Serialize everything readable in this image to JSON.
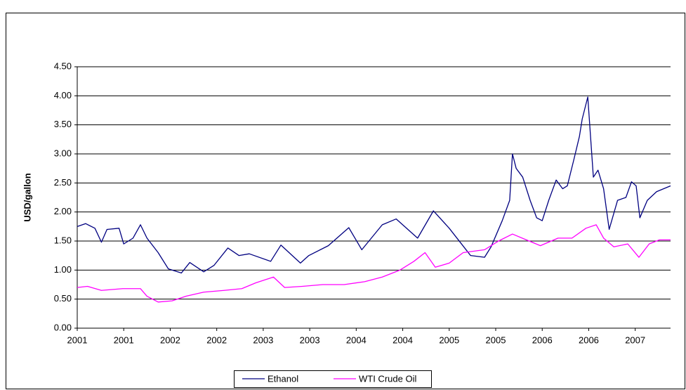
{
  "chart_data": {
    "type": "line",
    "y_label": "USD/gallon",
    "xlim": [
      2001,
      2007.38
    ],
    "xticks": [
      {
        "value": 2001,
        "label": "2001"
      },
      {
        "value": 2001.5,
        "label": "2001"
      },
      {
        "value": 2002,
        "label": "2002"
      },
      {
        "value": 2002.5,
        "label": "2002"
      },
      {
        "value": 2003,
        "label": "2003"
      },
      {
        "value": 2003.5,
        "label": "2003"
      },
      {
        "value": 2004,
        "label": "2004"
      },
      {
        "value": 2004.5,
        "label": "2004"
      },
      {
        "value": 2005,
        "label": "2005"
      },
      {
        "value": 2005.5,
        "label": "2005"
      },
      {
        "value": 2006,
        "label": "2006"
      },
      {
        "value": 2006.5,
        "label": "2006"
      },
      {
        "value": 2007,
        "label": "2007"
      }
    ],
    "ylim": [
      0,
      4.5
    ],
    "yticks": [
      {
        "value": 0,
        "label": "0.00"
      },
      {
        "value": 0.5,
        "label": "0.50"
      },
      {
        "value": 1,
        "label": "1.00"
      },
      {
        "value": 1.5,
        "label": "1.50"
      },
      {
        "value": 2,
        "label": "2.00"
      },
      {
        "value": 2.5,
        "label": "2.50"
      },
      {
        "value": 3,
        "label": "3.00"
      },
      {
        "value": 3.5,
        "label": "3.50"
      },
      {
        "value": 4,
        "label": "4.00"
      },
      {
        "value": 4.5,
        "label": "4.50"
      }
    ],
    "grid": true,
    "legend": "bottom",
    "series": [
      {
        "name": "Ethanol",
        "color": "#000080",
        "x": [
          2001.0,
          2001.09,
          2001.19,
          2001.26,
          2001.32,
          2001.45,
          2001.5,
          2001.6,
          2001.68,
          2001.75,
          2001.87,
          2001.98,
          2002.12,
          2002.21,
          2002.36,
          2002.47,
          2002.62,
          2002.74,
          2002.85,
          2003.08,
          2003.19,
          2003.4,
          2003.49,
          2003.7,
          2003.92,
          2004.06,
          2004.28,
          2004.43,
          2004.66,
          2004.83,
          2005.0,
          2005.23,
          2005.38,
          2005.45,
          2005.57,
          2005.65,
          2005.68,
          2005.72,
          2005.79,
          2005.87,
          2005.94,
          2006.0,
          2006.07,
          2006.15,
          2006.22,
          2006.27,
          2006.34,
          2006.4,
          2006.43,
          2006.49,
          2006.55,
          2006.6,
          2006.66,
          2006.72,
          2006.81,
          2006.9,
          2006.96,
          2007.01,
          2007.05,
          2007.13,
          2007.23,
          2007.38
        ],
        "values": [
          1.75,
          1.8,
          1.72,
          1.48,
          1.7,
          1.72,
          1.45,
          1.55,
          1.78,
          1.55,
          1.3,
          1.02,
          0.95,
          1.13,
          0.97,
          1.08,
          1.38,
          1.25,
          1.28,
          1.15,
          1.43,
          1.12,
          1.25,
          1.42,
          1.73,
          1.35,
          1.78,
          1.88,
          1.55,
          2.02,
          1.72,
          1.25,
          1.22,
          1.4,
          1.85,
          2.2,
          3.0,
          2.75,
          2.6,
          2.2,
          1.9,
          1.85,
          2.2,
          2.55,
          2.4,
          2.45,
          2.9,
          3.3,
          3.6,
          3.98,
          2.6,
          2.72,
          2.4,
          1.7,
          2.2,
          2.25,
          2.52,
          2.45,
          1.9,
          2.2,
          2.35,
          2.45
        ]
      },
      {
        "name": "WTI Crude Oil",
        "color": "#ff00ff",
        "x": [
          2001.0,
          2001.11,
          2001.26,
          2001.49,
          2001.68,
          2001.75,
          2001.87,
          2002.02,
          2002.17,
          2002.36,
          2002.58,
          2002.77,
          2002.92,
          2003.11,
          2003.23,
          2003.42,
          2003.64,
          2003.87,
          2004.09,
          2004.28,
          2004.47,
          2004.62,
          2004.74,
          2004.85,
          2005.0,
          2005.15,
          2005.38,
          2005.53,
          2005.68,
          2005.83,
          2005.98,
          2006.17,
          2006.32,
          2006.47,
          2006.58,
          2006.66,
          2006.77,
          2006.92,
          2007.04,
          2007.15,
          2007.26,
          2007.38
        ],
        "values": [
          0.7,
          0.72,
          0.65,
          0.68,
          0.68,
          0.55,
          0.45,
          0.47,
          0.55,
          0.62,
          0.65,
          0.68,
          0.78,
          0.88,
          0.7,
          0.72,
          0.75,
          0.75,
          0.8,
          0.88,
          1.0,
          1.15,
          1.3,
          1.05,
          1.12,
          1.3,
          1.35,
          1.5,
          1.62,
          1.52,
          1.42,
          1.55,
          1.55,
          1.72,
          1.78,
          1.55,
          1.4,
          1.45,
          1.22,
          1.45,
          1.52,
          1.52
        ]
      }
    ]
  }
}
